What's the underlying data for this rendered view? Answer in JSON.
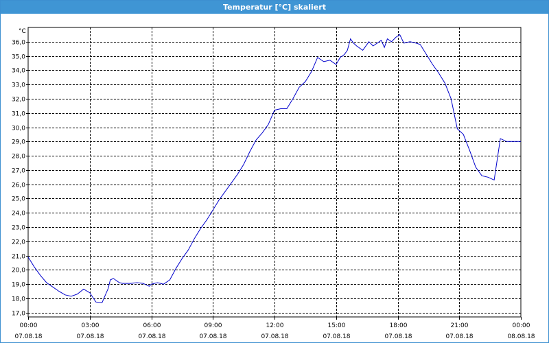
{
  "window": {
    "title": "Temperatur [°C] skaliert"
  },
  "colors": {
    "titlebar": "#3f95d4",
    "line": "#0000cc",
    "grid": "#000000",
    "background": "#ffffff"
  },
  "chart_data": {
    "type": "line",
    "title": "Temperatur [°C] skaliert",
    "xlabel": "",
    "ylabel": "°C",
    "ylim": [
      16.7,
      37.0
    ],
    "xlim": [
      0,
      24
    ],
    "grid": true,
    "legend": "none",
    "yticks": [
      "17,0",
      "18,0",
      "19,0",
      "20,0",
      "21,0",
      "22,0",
      "23,0",
      "24,0",
      "25,0",
      "26,0",
      "27,0",
      "28,0",
      "29,0",
      "30,0",
      "31,0",
      "32,0",
      "33,0",
      "34,0",
      "35,0",
      "36,0"
    ],
    "xticks": [
      {
        "time": "00:00",
        "date": "07.08.18"
      },
      {
        "time": "03:00",
        "date": "07.08.18"
      },
      {
        "time": "06:00",
        "date": "07.08.18"
      },
      {
        "time": "09:00",
        "date": "07.08.18"
      },
      {
        "time": "12:00",
        "date": "07.08.18"
      },
      {
        "time": "15:00",
        "date": "07.08.18"
      },
      {
        "time": "18:00",
        "date": "07.08.18"
      },
      {
        "time": "21:00",
        "date": "07.08.18"
      },
      {
        "time": "00:00",
        "date": "08.08.18"
      }
    ],
    "series": [
      {
        "x": [
          0.0,
          0.3,
          0.6,
          0.9,
          1.2,
          1.5,
          1.8,
          2.1,
          2.4,
          2.7,
          3.0,
          3.3,
          3.6,
          3.9,
          4.0,
          4.15,
          4.3,
          4.45,
          4.6,
          4.8,
          5.0,
          5.3,
          5.6,
          5.9,
          6.0,
          6.3,
          6.6,
          6.9,
          7.2,
          7.5,
          7.8,
          8.1,
          8.4,
          8.7,
          9.0,
          9.3,
          9.6,
          9.9,
          10.2,
          10.5,
          10.8,
          11.1,
          11.4,
          11.7,
          12.0,
          12.3,
          12.6,
          12.9,
          13.2,
          13.5,
          13.8,
          14.1,
          14.4,
          14.7,
          15.0,
          15.2,
          15.4,
          15.55,
          15.7,
          15.85,
          16.0,
          16.3,
          16.6,
          16.8,
          17.0,
          17.2,
          17.35,
          17.5,
          17.7,
          17.9,
          18.1,
          18.3,
          18.6,
          18.9,
          19.1,
          19.4,
          19.7,
          20.0,
          20.3,
          20.6,
          20.9,
          21.2,
          21.5,
          21.8,
          22.1,
          22.4,
          22.7,
          23.0,
          23.3,
          23.6,
          23.8,
          24.0
        ],
        "y": [
          20.9,
          20.2,
          19.6,
          19.1,
          18.8,
          18.5,
          18.25,
          18.15,
          18.3,
          18.65,
          18.4,
          17.75,
          17.7,
          18.7,
          19.3,
          19.4,
          19.25,
          19.1,
          19.05,
          19.05,
          19.05,
          19.1,
          19.05,
          18.85,
          19.0,
          19.1,
          19.0,
          19.3,
          20.1,
          20.8,
          21.4,
          22.2,
          22.9,
          23.5,
          24.2,
          24.9,
          25.5,
          26.1,
          26.7,
          27.4,
          28.3,
          29.1,
          29.6,
          30.2,
          31.2,
          31.3,
          31.3,
          32.0,
          32.8,
          33.2,
          33.9,
          34.9,
          34.6,
          34.7,
          34.4,
          34.9,
          35.1,
          35.4,
          36.2,
          35.9,
          35.7,
          35.4,
          36.0,
          35.7,
          35.9,
          36.1,
          35.6,
          36.2,
          36.0,
          36.3,
          36.5,
          35.9,
          36.0,
          35.9,
          35.8,
          35.1,
          34.4,
          33.8,
          33.1,
          32.0,
          29.9,
          29.5,
          28.4,
          27.2,
          26.6,
          26.5,
          26.3,
          29.2,
          29.0,
          29.0,
          29.0,
          29.0
        ]
      }
    ]
  }
}
